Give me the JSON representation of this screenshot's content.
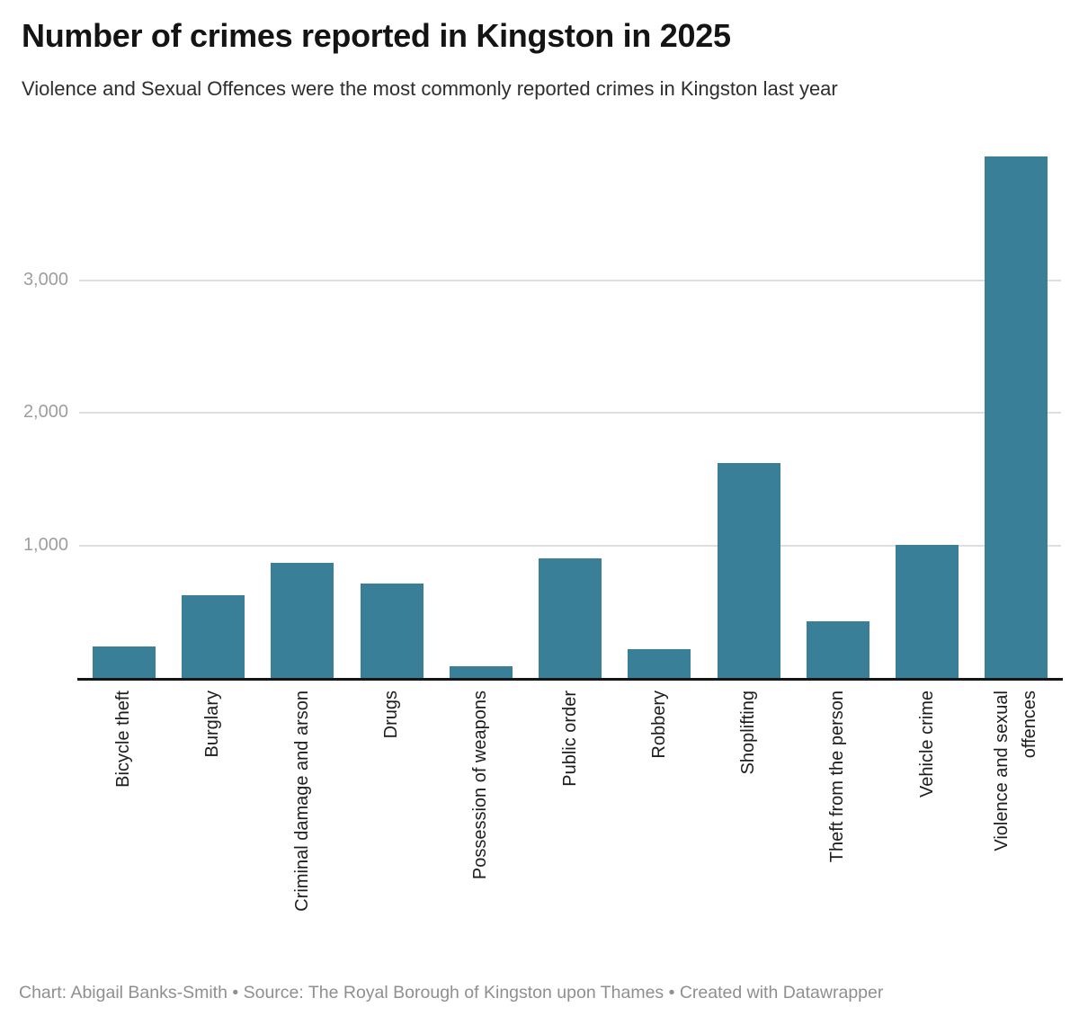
{
  "chart_data": {
    "type": "bar",
    "title": "Number of crimes reported in Kingston in 2025",
    "subtitle": "Violence and Sexual Offences were the most commonly reported crimes in Kingston last year",
    "categories": [
      "Bicycle theft",
      "Burglary",
      "Criminal damage and arson",
      "Drugs",
      "Possession of weapons",
      "Public order",
      "Robbery",
      "Shoplifting",
      "Theft from the person",
      "Vehicle crime",
      "Violence and sexual\noffences"
    ],
    "values": [
      240,
      625,
      870,
      710,
      90,
      905,
      215,
      1625,
      430,
      1005,
      3935
    ],
    "xlabel": "",
    "ylabel": "",
    "yticks": [
      1000,
      2000,
      3000
    ],
    "ytick_labels": [
      "1,000",
      "2,000",
      "3,000"
    ],
    "ylim": [
      0,
      4100
    ],
    "grid": true,
    "legend": false,
    "bar_color": "#397f97",
    "grid_color": "#dedede",
    "axis_line_color": "#161616",
    "ytick_label_color": "#9e9e9e",
    "xtick_label_color": "#1d1d1d"
  },
  "footer": {
    "text": "Chart: Abigail Banks-Smith • Source: The Royal Borough of Kingston upon Thames • Created with Datawrapper"
  }
}
